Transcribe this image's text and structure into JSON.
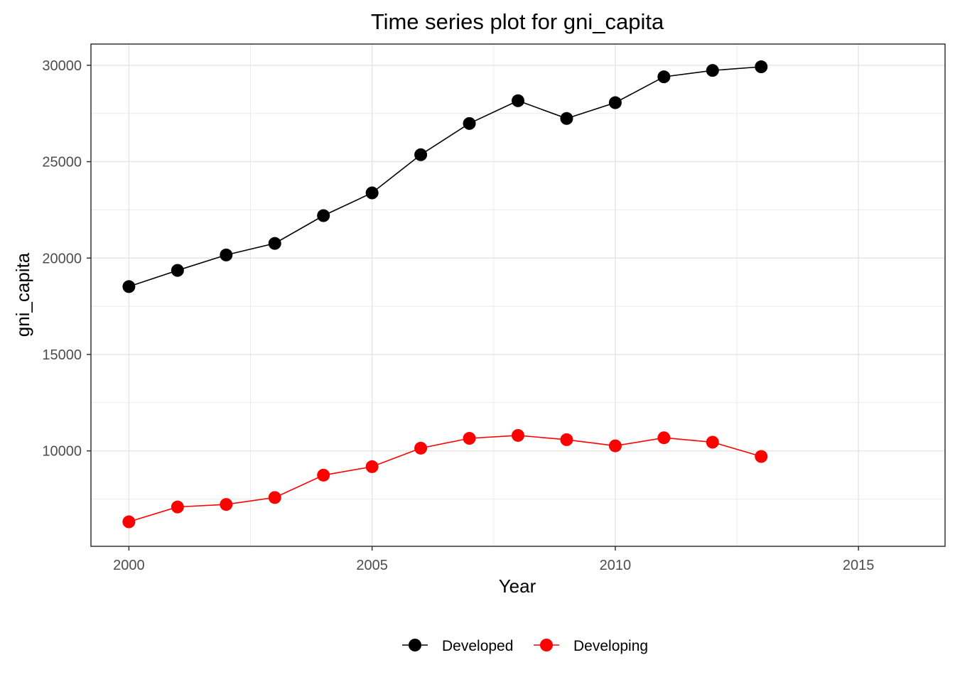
{
  "chart_data": {
    "type": "line",
    "title": "Time series plot for gni_capita",
    "xlabel": "Year",
    "ylabel": "gni_capita",
    "x": [
      2000,
      2001,
      2002,
      2003,
      2004,
      2005,
      2006,
      2007,
      2008,
      2009,
      2010,
      2011,
      2012,
      2013
    ],
    "series": [
      {
        "name": "Developed",
        "color": "#000000",
        "values": [
          18520,
          19360,
          20160,
          20760,
          22200,
          23380,
          25360,
          26980,
          28160,
          27240,
          28060,
          29400,
          29730,
          29920
        ]
      },
      {
        "name": "Developing",
        "color": "#ff0000",
        "values": [
          6320,
          7090,
          7220,
          7580,
          8740,
          9180,
          10140,
          10650,
          10800,
          10580,
          10260,
          10680,
          10450,
          9710
        ]
      }
    ],
    "xlim": [
      1999.22,
      2016.78
    ],
    "ylim": [
      5050,
      31100
    ],
    "xticks": [
      2000,
      2005,
      2010,
      2015
    ],
    "xtick_labels": [
      "2000",
      "2005",
      "2010",
      "2015"
    ],
    "yticks": [
      10000,
      15000,
      20000,
      25000,
      30000
    ],
    "ytick_labels": [
      "10000",
      "15000",
      "20000",
      "25000",
      "30000"
    ],
    "grid": true,
    "legend_position": "bottom"
  }
}
